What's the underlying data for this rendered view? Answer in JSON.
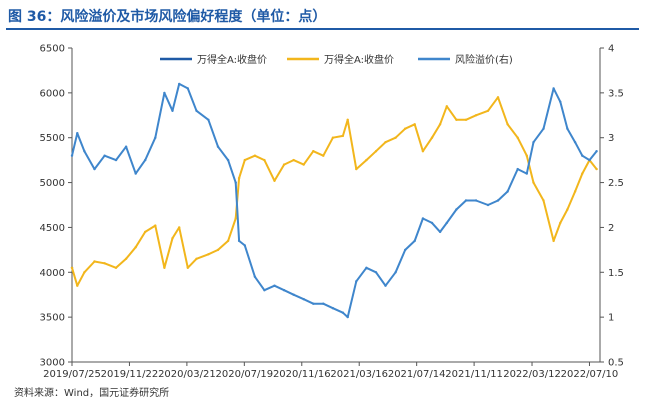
{
  "title": "图 36：风险溢价及市场风险偏好程度（单位：点）",
  "source": "资料来源：Wind，国元证券研究所",
  "chart_data": {
    "type": "line",
    "title": "图 36：风险溢价及市场风险偏好程度（单位：点）",
    "x_tick_labels": [
      "2019/07/25",
      "2019/11/22",
      "2020/03/21",
      "2020/07/19",
      "2020/11/16",
      "2021/03/16",
      "2021/07/14",
      "2021/11/11",
      "2022/03/12",
      "2022/07/10"
    ],
    "x_range": [
      "2019/07/25",
      "2022/08/01"
    ],
    "y_left": {
      "range": [
        3000,
        6500
      ],
      "ticks": [
        3000,
        3500,
        4000,
        4500,
        5000,
        5500,
        6000,
        6500
      ]
    },
    "y_right": {
      "range": [
        0.5,
        4
      ],
      "ticks": [
        0.5,
        1,
        1.5,
        2,
        2.5,
        3,
        3.5,
        4
      ],
      "tick_labels": [
        "0.5",
        "1",
        "1.5",
        "2",
        "2.5",
        "3",
        "3.5",
        "4"
      ]
    },
    "legend": [
      "万得全A:收盘价",
      "万得全A:收盘价",
      "风险溢价(右)"
    ],
    "legend_position": "top",
    "grid": false,
    "series": [
      {
        "name": "万得全A:收盘价",
        "axis": "left",
        "color": "#1f5aa6",
        "x": [
          "2019/07/25"
        ],
        "y": [
          4050
        ]
      },
      {
        "name": "万得全A:收盘价",
        "axis": "left",
        "color": "#f2b61c",
        "x": [
          "2019/07/25",
          "2019/08/05",
          "2019/08/20",
          "2019/09/10",
          "2019/10/01",
          "2019/10/25",
          "2019/11/15",
          "2019/12/05",
          "2019/12/25",
          "2020/01/15",
          "2020/02/03",
          "2020/02/20",
          "2020/03/05",
          "2020/03/23",
          "2020/04/10",
          "2020/05/05",
          "2020/05/25",
          "2020/06/15",
          "2020/07/01",
          "2020/07/08",
          "2020/07/20",
          "2020/08/10",
          "2020/08/30",
          "2020/09/20",
          "2020/10/10",
          "2020/10/30",
          "2020/11/20",
          "2020/12/10",
          "2020/12/31",
          "2021/01/20",
          "2021/02/10",
          "2021/02/20",
          "2021/03/10",
          "2021/03/31",
          "2021/04/20",
          "2021/05/10",
          "2021/05/31",
          "2021/06/20",
          "2021/07/10",
          "2021/07/27",
          "2021/08/15",
          "2021/09/01",
          "2021/09/15",
          "2021/10/05",
          "2021/10/25",
          "2021/11/15",
          "2021/12/10",
          "2021/12/31",
          "2022/01/20",
          "2022/02/10",
          "2022/03/01",
          "2022/03/15",
          "2022/04/05",
          "2022/04/26",
          "2022/05/10",
          "2022/05/25",
          "2022/06/10",
          "2022/06/25",
          "2022/07/10",
          "2022/07/25"
        ],
        "y": [
          4050,
          3850,
          4000,
          4120,
          4100,
          4050,
          4150,
          4280,
          4450,
          4520,
          4050,
          4380,
          4500,
          4050,
          4150,
          4200,
          4250,
          4350,
          4600,
          5050,
          5250,
          5300,
          5250,
          5020,
          5200,
          5250,
          5200,
          5350,
          5300,
          5500,
          5520,
          5700,
          5150,
          5250,
          5350,
          5450,
          5500,
          5600,
          5650,
          5350,
          5500,
          5650,
          5850,
          5700,
          5700,
          5750,
          5800,
          5950,
          5650,
          5500,
          5300,
          5000,
          4800,
          4350,
          4550,
          4700,
          4900,
          5100,
          5250,
          5150
        ]
      },
      {
        "name": "风险溢价(右)",
        "axis": "right",
        "color": "#3f86cc",
        "x": [
          "2019/07/25",
          "2019/08/05",
          "2019/08/20",
          "2019/09/10",
          "2019/10/01",
          "2019/10/25",
          "2019/11/15",
          "2019/12/05",
          "2019/12/25",
          "2020/01/15",
          "2020/02/03",
          "2020/02/20",
          "2020/03/05",
          "2020/03/23",
          "2020/04/10",
          "2020/05/05",
          "2020/05/25",
          "2020/06/15",
          "2020/07/01",
          "2020/07/08",
          "2020/07/20",
          "2020/08/10",
          "2020/08/30",
          "2020/09/20",
          "2020/10/10",
          "2020/10/30",
          "2020/11/20",
          "2020/12/10",
          "2020/12/31",
          "2021/01/20",
          "2021/02/10",
          "2021/02/20",
          "2021/03/10",
          "2021/03/31",
          "2021/04/20",
          "2021/05/10",
          "2021/05/31",
          "2021/06/20",
          "2021/07/10",
          "2021/07/27",
          "2021/08/15",
          "2021/09/01",
          "2021/09/15",
          "2021/10/05",
          "2021/10/25",
          "2021/11/15",
          "2021/12/10",
          "2021/12/31",
          "2022/01/20",
          "2022/02/10",
          "2022/03/01",
          "2022/03/15",
          "2022/04/05",
          "2022/04/26",
          "2022/05/10",
          "2022/05/25",
          "2022/06/10",
          "2022/06/25",
          "2022/07/10",
          "2022/07/25"
        ],
        "y": [
          2.8,
          3.05,
          2.85,
          2.65,
          2.8,
          2.75,
          2.9,
          2.6,
          2.75,
          3.0,
          3.5,
          3.3,
          3.6,
          3.55,
          3.3,
          3.2,
          2.9,
          2.75,
          2.5,
          1.85,
          1.8,
          1.45,
          1.3,
          1.35,
          1.3,
          1.25,
          1.2,
          1.15,
          1.15,
          1.1,
          1.05,
          1.0,
          1.4,
          1.55,
          1.5,
          1.35,
          1.5,
          1.75,
          1.85,
          2.1,
          2.05,
          1.95,
          2.05,
          2.2,
          2.3,
          2.3,
          2.25,
          2.3,
          2.4,
          2.65,
          2.6,
          2.95,
          3.1,
          3.55,
          3.4,
          3.1,
          2.95,
          2.8,
          2.75,
          2.85
        ]
      }
    ]
  }
}
